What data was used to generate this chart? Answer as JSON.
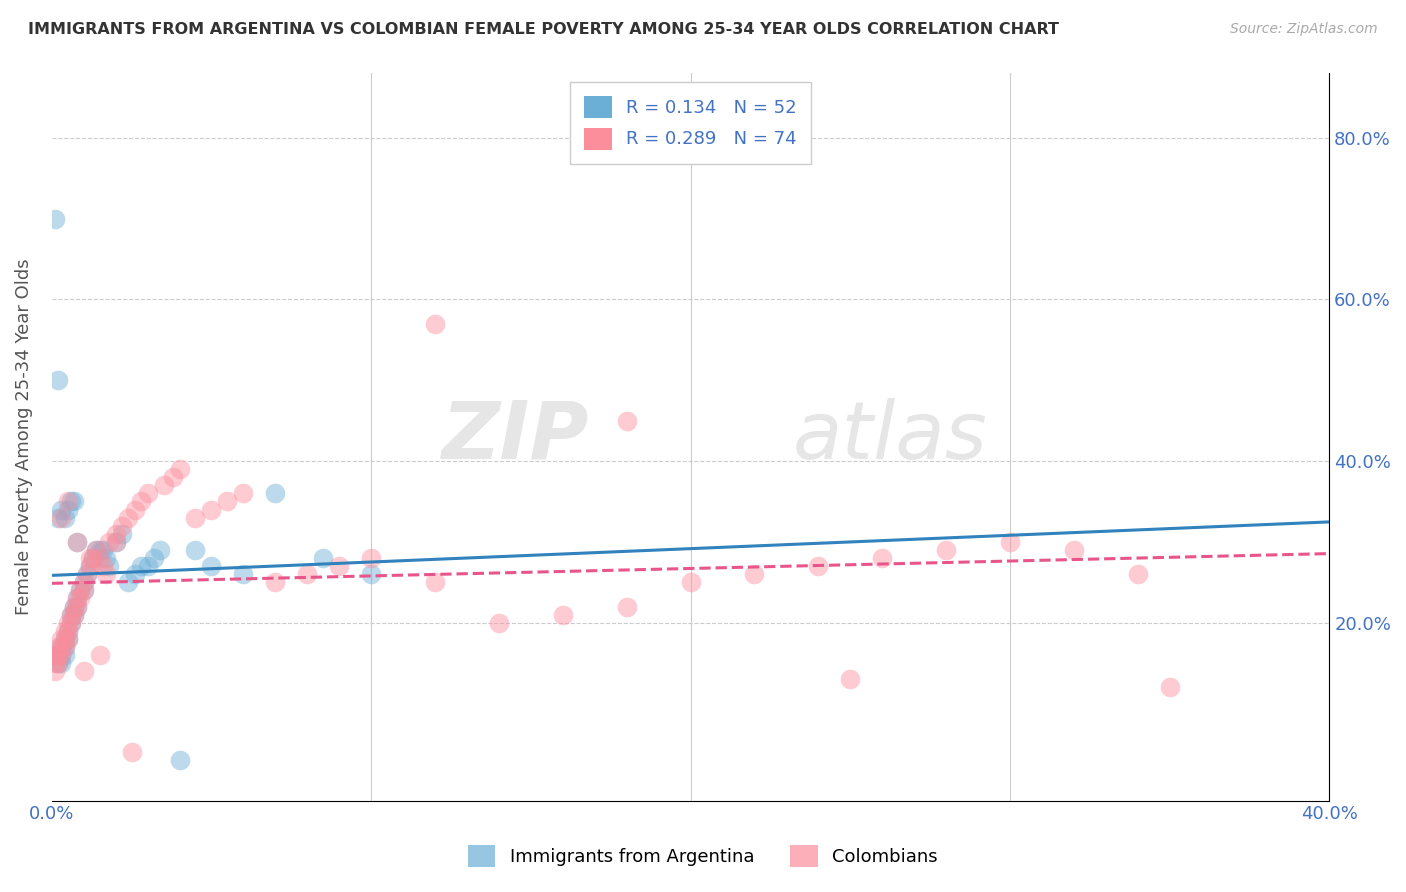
{
  "title": "IMMIGRANTS FROM ARGENTINA VS COLOMBIAN FEMALE POVERTY AMONG 25-34 YEAR OLDS CORRELATION CHART",
  "source": "Source: ZipAtlas.com",
  "ylabel": "Female Poverty Among 25-34 Year Olds",
  "xlim": [
    0.0,
    0.4
  ],
  "ylim": [
    -0.02,
    0.88
  ],
  "argentina_R": 0.134,
  "argentina_N": 52,
  "colombia_R": 0.289,
  "colombia_N": 74,
  "argentina_color": "#6baed6",
  "colombia_color": "#fc8d9b",
  "argentina_line_color": "#3182bd",
  "colombia_line_color": "#e8558a",
  "argentina_scatter_x": [
    0.001,
    0.001,
    0.002,
    0.002,
    0.002,
    0.003,
    0.003,
    0.003,
    0.004,
    0.004,
    0.004,
    0.005,
    0.005,
    0.006,
    0.006,
    0.007,
    0.007,
    0.008,
    0.008,
    0.009,
    0.01,
    0.01,
    0.011,
    0.012,
    0.013,
    0.014,
    0.015,
    0.016,
    0.017,
    0.018,
    0.02,
    0.022,
    0.024,
    0.026,
    0.028,
    0.03,
    0.032,
    0.034,
    0.002,
    0.003,
    0.004,
    0.005,
    0.006,
    0.007,
    0.008,
    0.04,
    0.045,
    0.05,
    0.06,
    0.07,
    0.085,
    0.1
  ],
  "argentina_scatter_y": [
    0.16,
    0.7,
    0.15,
    0.16,
    0.5,
    0.16,
    0.17,
    0.15,
    0.18,
    0.17,
    0.16,
    0.19,
    0.18,
    0.2,
    0.21,
    0.21,
    0.22,
    0.23,
    0.22,
    0.24,
    0.25,
    0.24,
    0.26,
    0.27,
    0.28,
    0.29,
    0.29,
    0.29,
    0.28,
    0.27,
    0.3,
    0.31,
    0.25,
    0.26,
    0.27,
    0.27,
    0.28,
    0.29,
    0.33,
    0.34,
    0.33,
    0.34,
    0.35,
    0.35,
    0.3,
    0.03,
    0.29,
    0.27,
    0.26,
    0.36,
    0.28,
    0.26
  ],
  "colombia_scatter_x": [
    0.001,
    0.001,
    0.001,
    0.002,
    0.002,
    0.002,
    0.003,
    0.003,
    0.003,
    0.004,
    0.004,
    0.004,
    0.005,
    0.005,
    0.005,
    0.006,
    0.006,
    0.007,
    0.007,
    0.008,
    0.008,
    0.009,
    0.009,
    0.01,
    0.01,
    0.011,
    0.012,
    0.013,
    0.014,
    0.015,
    0.016,
    0.017,
    0.018,
    0.02,
    0.022,
    0.024,
    0.026,
    0.028,
    0.03,
    0.035,
    0.038,
    0.04,
    0.045,
    0.05,
    0.055,
    0.06,
    0.07,
    0.08,
    0.09,
    0.1,
    0.12,
    0.14,
    0.16,
    0.18,
    0.2,
    0.22,
    0.24,
    0.26,
    0.28,
    0.3,
    0.32,
    0.34,
    0.18,
    0.12,
    0.003,
    0.005,
    0.008,
    0.012,
    0.25,
    0.35,
    0.025,
    0.02,
    0.015,
    0.01
  ],
  "colombia_scatter_y": [
    0.16,
    0.15,
    0.14,
    0.17,
    0.16,
    0.15,
    0.18,
    0.17,
    0.16,
    0.19,
    0.18,
    0.17,
    0.2,
    0.19,
    0.18,
    0.21,
    0.2,
    0.22,
    0.21,
    0.23,
    0.22,
    0.24,
    0.23,
    0.25,
    0.24,
    0.26,
    0.27,
    0.28,
    0.29,
    0.28,
    0.27,
    0.26,
    0.3,
    0.31,
    0.32,
    0.33,
    0.34,
    0.35,
    0.36,
    0.37,
    0.38,
    0.39,
    0.33,
    0.34,
    0.35,
    0.36,
    0.25,
    0.26,
    0.27,
    0.28,
    0.25,
    0.2,
    0.21,
    0.22,
    0.25,
    0.26,
    0.27,
    0.28,
    0.29,
    0.3,
    0.29,
    0.26,
    0.45,
    0.57,
    0.33,
    0.35,
    0.3,
    0.28,
    0.13,
    0.12,
    0.04,
    0.3,
    0.16,
    0.14
  ],
  "watermark_zip": "ZIP",
  "watermark_atlas": "atlas",
  "legend_argentina_label": "R = 0.134   N = 52",
  "legend_colombia_label": "R = 0.289   N = 74",
  "legend_argentina_label_short": "Immigrants from Argentina",
  "legend_colombia_label_short": "Colombians",
  "background_color": "#ffffff",
  "grid_color": "#cccccc",
  "tick_color": "#4472c4",
  "title_color": "#333333",
  "source_color": "#aaaaaa",
  "ylabel_color": "#555555"
}
